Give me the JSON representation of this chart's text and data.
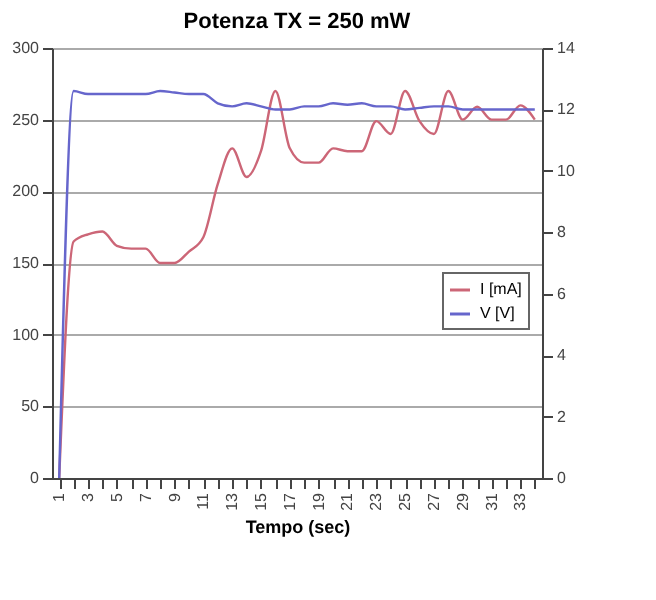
{
  "chart_data": {
    "type": "line",
    "title": "Potenza TX = 250 mW",
    "xlabel": "Tempo (sec)",
    "categories": [
      "1",
      null,
      "3",
      null,
      "5",
      null,
      "7",
      null,
      "9",
      null,
      "11",
      null,
      "13",
      null,
      "15",
      null,
      "17",
      null,
      "19",
      null,
      "21",
      null,
      "23",
      null,
      "25",
      null,
      "27",
      null,
      "29",
      null,
      "31",
      null,
      "33",
      null
    ],
    "series": [
      {
        "name": "I [mA]",
        "color": "#cc6677",
        "values": [
          0,
          165,
          170,
          172,
          162,
          160,
          160,
          150,
          150,
          158,
          168,
          205,
          230,
          210,
          228,
          270,
          230,
          220,
          220,
          230,
          228,
          228,
          249,
          240,
          270,
          249,
          240,
          270,
          250,
          259,
          250,
          250,
          260,
          250
        ]
      },
      {
        "name": "V [V]",
        "color": "#6666cc",
        "axis": "y2",
        "values": [
          0,
          12.6,
          12.5,
          12.5,
          12.5,
          12.5,
          12.5,
          12.6,
          12.55,
          12.5,
          12.5,
          12.2,
          12.1,
          12.2,
          12.1,
          12.0,
          12.0,
          12.1,
          12.1,
          12.2,
          12.15,
          12.2,
          12.1,
          12.1,
          12.0,
          12.05,
          12.1,
          12.1,
          12.0,
          12.0,
          12.0,
          12.0,
          12.0,
          12.0
        ]
      }
    ],
    "ylim": [
      0,
      300
    ],
    "yticks": [
      0,
      50,
      100,
      150,
      200,
      250,
      300
    ],
    "y2lim": [
      0,
      14
    ],
    "y2ticks": [
      0,
      2,
      4,
      6,
      8,
      10,
      12,
      14
    ],
    "grid": "y",
    "legend": "right",
    "marker": "none",
    "line_style": "solid"
  }
}
